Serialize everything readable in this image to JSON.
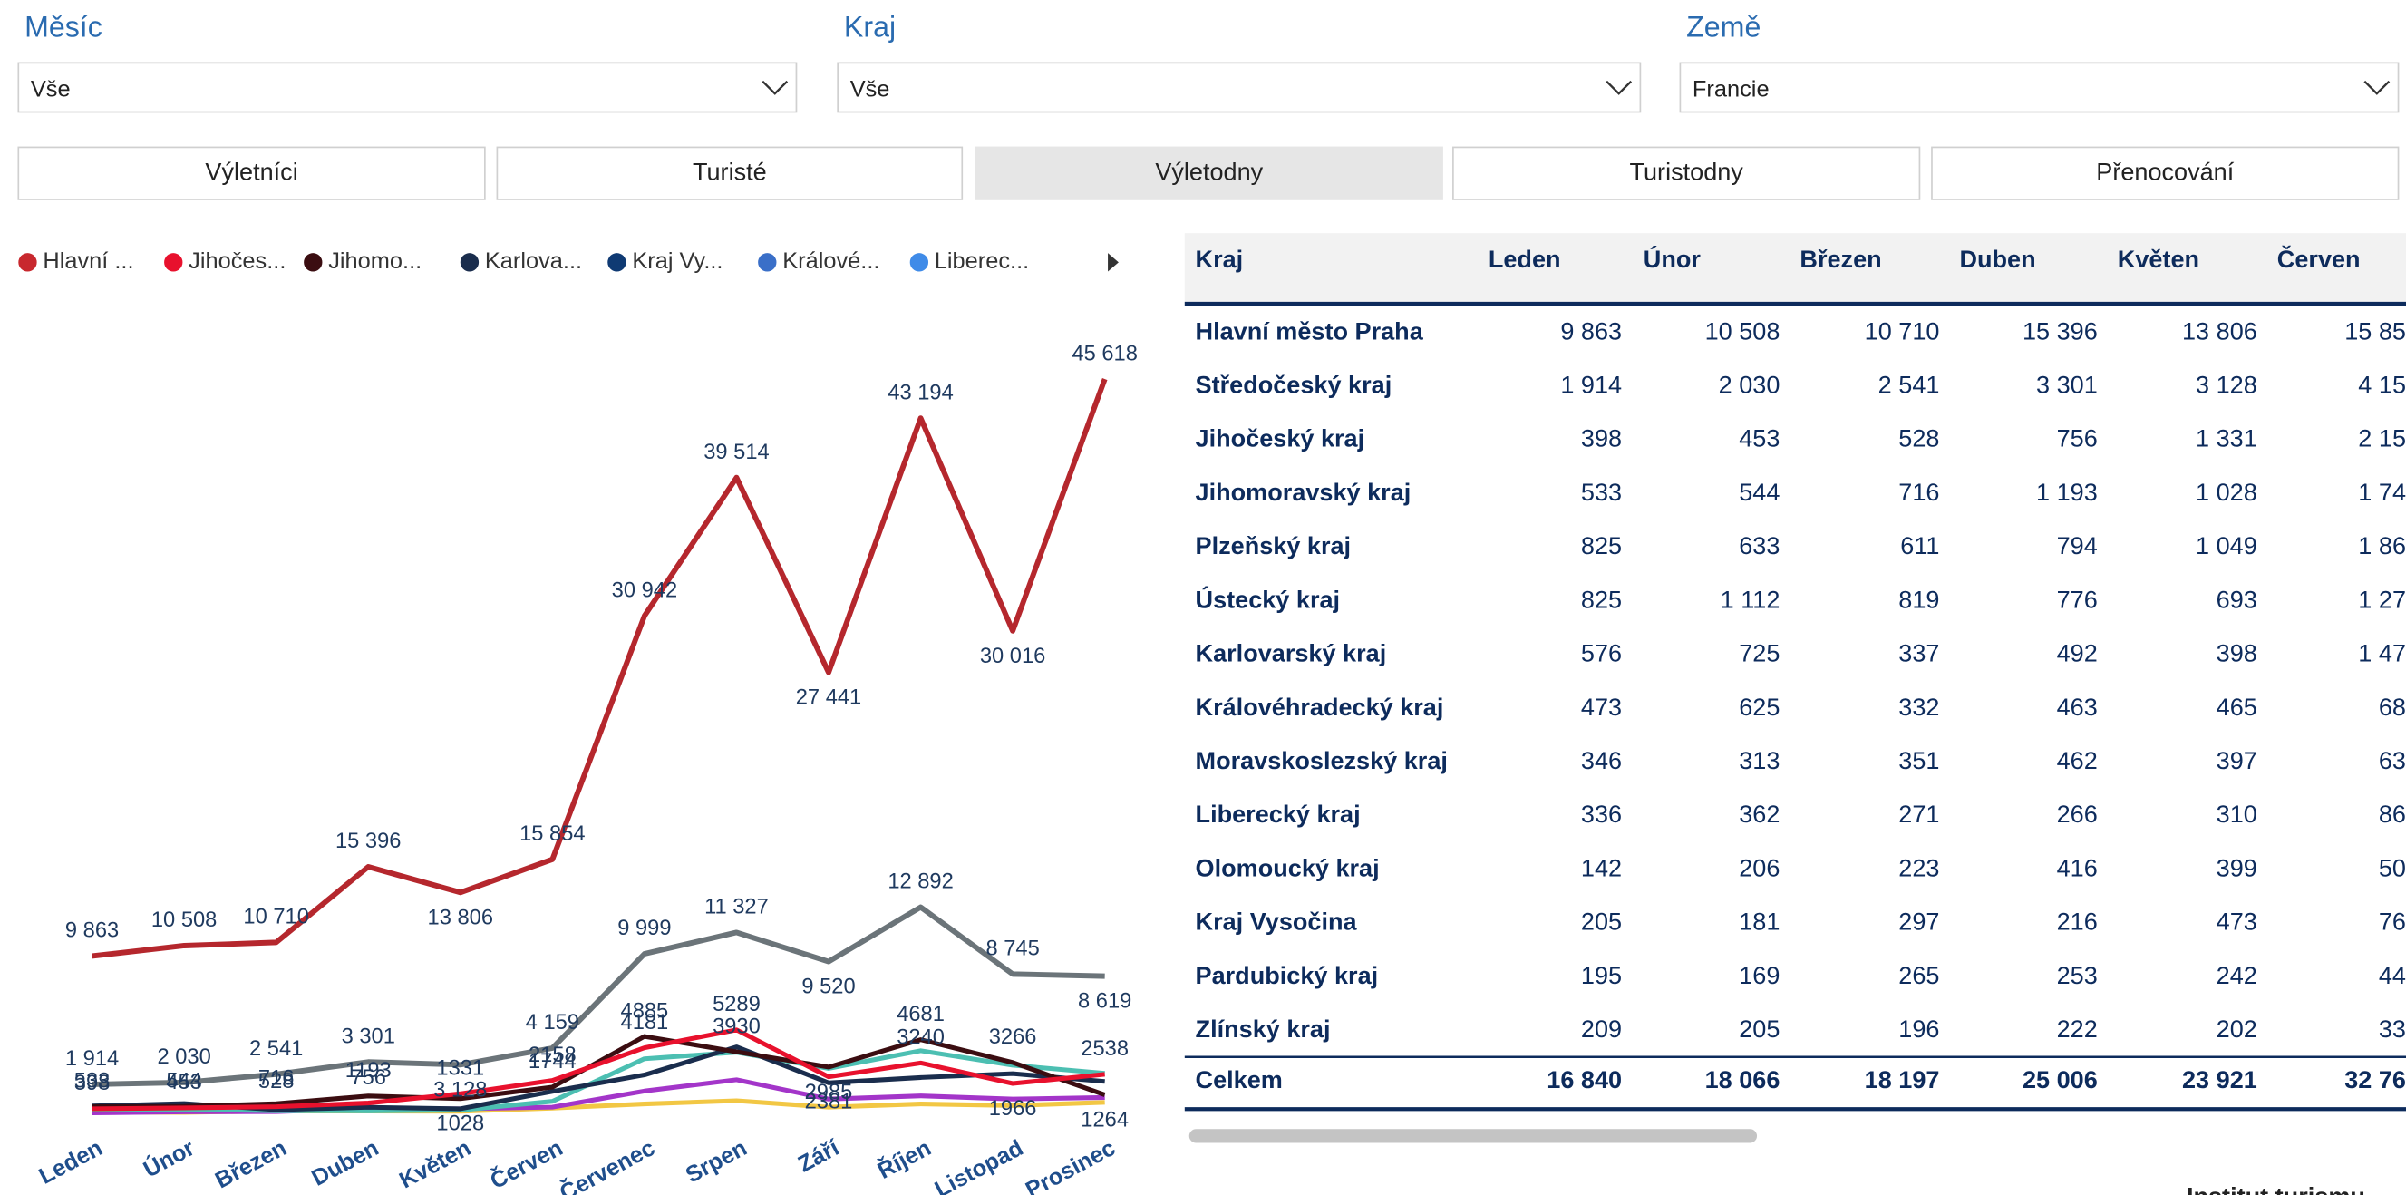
{
  "filters": [
    {
      "label": "Měsíc",
      "value": "Vše"
    },
    {
      "label": "Kraj",
      "value": "Vše"
    },
    {
      "label": "Země",
      "value": "Francie"
    }
  ],
  "tabs": [
    "Výletníci",
    "Turisté",
    "Výletodny",
    "Turistodny",
    "Přenocování"
  ],
  "selected_tab": 2,
  "chart_data": {
    "type": "line",
    "legend": [
      {
        "label": "Hlavní ...",
        "color": "#c8282e"
      },
      {
        "label": "Jihočes...",
        "color": "#e8112d"
      },
      {
        "label": "Jihomo...",
        "color": "#3b0d11"
      },
      {
        "label": "Karlova...",
        "color": "#1a2d4d"
      },
      {
        "label": "Kraj Vy...",
        "color": "#0f3a73"
      },
      {
        "label": "Králové...",
        "color": "#3a6fc8"
      },
      {
        "label": "Liberec...",
        "color": "#3f8be8"
      }
    ],
    "categories": [
      "Leden",
      "Únor",
      "Březen",
      "Duben",
      "Květen",
      "Červen",
      "Červenec",
      "Srpen",
      "Září",
      "Říjen",
      "Listopad",
      "Prosinec"
    ],
    "ylim": [
      0,
      50000
    ],
    "series": [
      {
        "color": "#f2c744",
        "values": [
          195,
          169,
          265,
          253,
          242,
          440,
          700,
          900,
          500,
          700,
          600,
          800
        ],
        "data_labels": false
      },
      {
        "color": "#a335c9",
        "values": [
          142,
          206,
          223,
          416,
          399,
          500,
          1500,
          2200,
          1000,
          1200,
          1000,
          1100
        ],
        "data_labels": false
      },
      {
        "color": "#4cbfb2",
        "values": [
          336,
          362,
          271,
          266,
          310,
          860,
          3500,
          3900,
          2900,
          4000,
          3100,
          2600
        ],
        "data_labels": false
      },
      {
        "color": "#1a2d4d",
        "values": [
          576,
          725,
          337,
          492,
          398,
          1474,
          2500,
          4235,
          2008,
          2338,
          2578,
          2095
        ],
        "data_labels": false
      },
      {
        "color": "#3b0d11",
        "values": [
          533,
          544,
          716,
          1193,
          1028,
          1744,
          4885,
          3930,
          2985,
          4681,
          3266,
          1264
        ],
        "data_labels": true
      },
      {
        "color": "#e8112d",
        "values": [
          398,
          453,
          528,
          756,
          1331,
          2158,
          4181,
          5289,
          2381,
          3240,
          1966,
          2538
        ],
        "data_labels": true
      },
      {
        "color": "#6b7479",
        "values": [
          1914,
          2030,
          2541,
          3301,
          3128,
          4159,
          9999,
          11327,
          9520,
          12892,
          8745,
          8619
        ],
        "data_labels": true,
        "value_labels": [
          "1 914",
          "2 030",
          "2 541",
          "3 301",
          "3 128",
          "4 159",
          "9 999",
          "11 327",
          "9 520",
          "12 892",
          "8 745",
          "8 619"
        ]
      },
      {
        "color": "#b5272d",
        "values": [
          9863,
          10508,
          10710,
          15396,
          13806,
          15854,
          30942,
          39514,
          27441,
          43194,
          30016,
          45618
        ],
        "data_labels": true,
        "value_labels": [
          "9 863",
          "10 508",
          "10 710",
          "15 396",
          "13 806",
          "15 854",
          "30 942",
          "39 514",
          "27 441",
          "43 194",
          "30 016",
          "45 618"
        ]
      }
    ]
  },
  "table": {
    "columns": [
      "Kraj",
      "Leden",
      "Únor",
      "Březen",
      "Duben",
      "Květen",
      "Červen"
    ],
    "rows": [
      [
        "Hlavní město Praha",
        "9 863",
        "10 508",
        "10 710",
        "15 396",
        "13 806",
        "15 85"
      ],
      [
        "Středočeský kraj",
        "1 914",
        "2 030",
        "2 541",
        "3 301",
        "3 128",
        "4 15"
      ],
      [
        "Jihočeský kraj",
        "398",
        "453",
        "528",
        "756",
        "1 331",
        "2 15"
      ],
      [
        "Jihomoravský kraj",
        "533",
        "544",
        "716",
        "1 193",
        "1 028",
        "1 74"
      ],
      [
        "Plzeňský kraj",
        "825",
        "633",
        "611",
        "794",
        "1 049",
        "1 86"
      ],
      [
        "Ústecký kraj",
        "825",
        "1 112",
        "819",
        "776",
        "693",
        "1 27"
      ],
      [
        "Karlovarský kraj",
        "576",
        "725",
        "337",
        "492",
        "398",
        "1 47"
      ],
      [
        "Královéhradecký kraj",
        "473",
        "625",
        "332",
        "463",
        "465",
        "68"
      ],
      [
        "Moravskoslezský kraj",
        "346",
        "313",
        "351",
        "462",
        "397",
        "63"
      ],
      [
        "Liberecký kraj",
        "336",
        "362",
        "271",
        "266",
        "310",
        "86"
      ],
      [
        "Olomoucký kraj",
        "142",
        "206",
        "223",
        "416",
        "399",
        "50"
      ],
      [
        "Kraj Vysočina",
        "205",
        "181",
        "297",
        "216",
        "473",
        "76"
      ],
      [
        "Pardubický kraj",
        "195",
        "169",
        "265",
        "253",
        "242",
        "44"
      ],
      [
        "Zlínský kraj",
        "209",
        "205",
        "196",
        "222",
        "202",
        "33"
      ]
    ],
    "total": [
      "Celkem",
      "16 840",
      "18 066",
      "18 197",
      "25 006",
      "23 921",
      "32 76"
    ]
  },
  "footer": "Institut turismu"
}
